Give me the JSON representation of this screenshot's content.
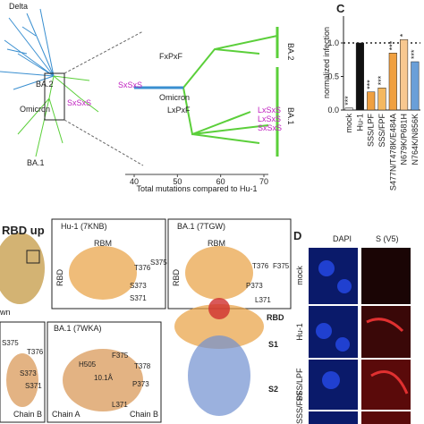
{
  "panel_a": {
    "tree_labels": [
      "Delta",
      "BA.2",
      "Omicron",
      "BA.1"
    ],
    "motif_left": "SxSxS",
    "subtree": {
      "clade_top": "BA.2",
      "clade_bottom": "BA.1",
      "root": "Omicron",
      "motifs": [
        "FxPxF",
        "SxSxS",
        "LxPxF",
        "LxSxS",
        "LxSxS",
        "SxSxS"
      ],
      "xticks": [
        40,
        50,
        60,
        70
      ],
      "xlabel": "Total mutations compared to Hu-1"
    }
  },
  "panel_c": {
    "letter": "C",
    "type": "bar",
    "ylabel": "normalized infection",
    "categories": [
      "mock",
      "Hu-1",
      "SSS/LPF",
      "SSS/FPF",
      "S477N/T478K/E484A",
      "N679K/P681H",
      "N764K/N856K"
    ],
    "values": [
      0.03,
      1.0,
      0.27,
      0.33,
      0.85,
      1.05,
      0.72
    ],
    "colors": [
      "#dddddd",
      "#111111",
      "#f0a040",
      "#f4b860",
      "#f0a040",
      "#f8c890",
      "#6a9fd8"
    ],
    "significance": [
      "***",
      null,
      "***",
      "***",
      "***",
      "*",
      "***"
    ],
    "ylim": [
      0,
      1.4
    ],
    "yticks": [
      {
        "value": 0,
        "label": "0.0"
      },
      {
        "value": 0.5,
        "label": "0.5"
      },
      {
        "value": 1,
        "label": "1.0"
      }
    ],
    "reference_line": 1
  },
  "panel_b": {
    "overview": "RBD up",
    "structures": [
      {
        "title": "Hu-1 (7KNB)",
        "region": "RBM",
        "domain": "RBD",
        "residues": [
          "T376",
          "S375",
          "S373",
          "S371"
        ]
      },
      {
        "title": "BA.1 (7TGW)",
        "region": "RBM",
        "domain": "RBD",
        "residues": [
          "T376",
          "F375",
          "P373",
          "L371"
        ]
      }
    ],
    "bottom_cut": "wn",
    "bottom_left": {
      "residues": [
        "S375",
        "T376",
        "S373",
        "S371"
      ],
      "chain": "Chain B"
    },
    "bottom_mid": {
      "title": "BA.1 (7WKA)",
      "residues": [
        "H505",
        "F375",
        "T378",
        "10.1Å",
        "P373",
        "L371"
      ],
      "chains": [
        "Chain A",
        "Chain B"
      ]
    },
    "spike": [
      "RBD",
      "S1",
      "S2"
    ]
  },
  "panel_d": {
    "letter": "D",
    "columns": [
      "DAPI",
      "S (V5)"
    ],
    "rows": [
      "mock",
      "Hu-1",
      "SSS/LPF",
      "SSS/FPF"
    ]
  }
}
